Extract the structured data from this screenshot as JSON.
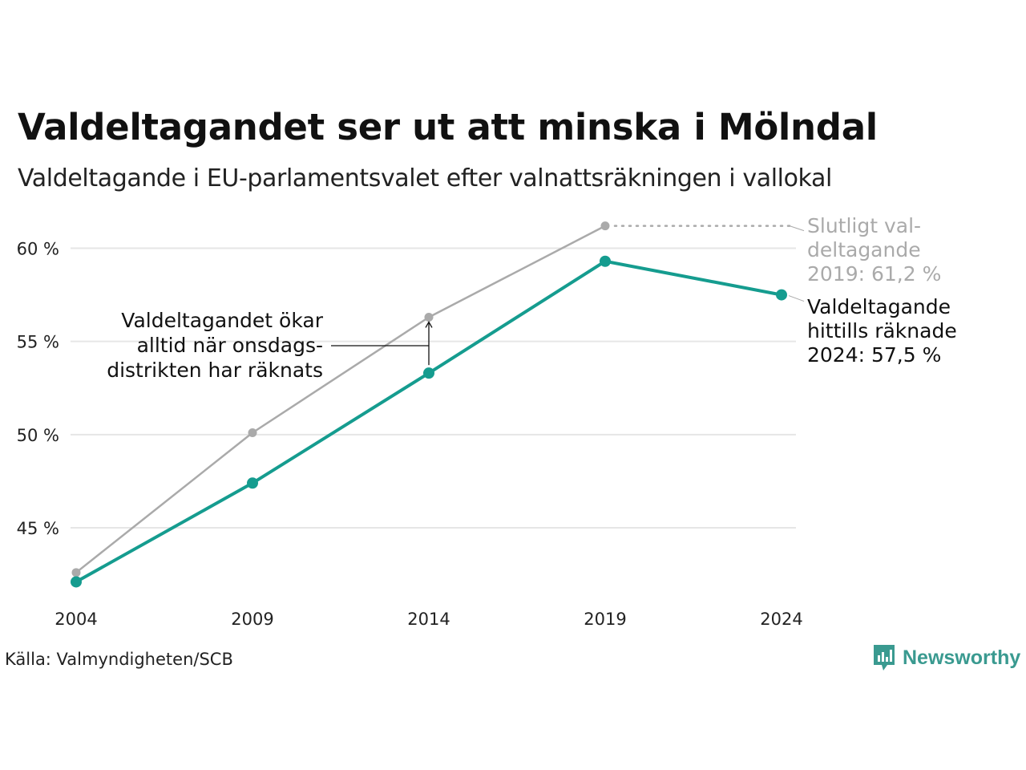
{
  "header": {
    "title": "Valdeltagandet ser ut att minska i Mölndal",
    "subtitle": "Valdeltagande i EU-parlamentsvalet efter valnattsräkningen i vallokal"
  },
  "chart_data": {
    "type": "line",
    "x": [
      2004,
      2009,
      2014,
      2019,
      2024
    ],
    "xtick_labels": [
      "2004",
      "2009",
      "2014",
      "2019",
      "2024"
    ],
    "ylim": [
      41,
      62
    ],
    "yticks": [
      45,
      50,
      55,
      60
    ],
    "ytick_labels": [
      "45 %",
      "50 %",
      "55 %",
      "60 %"
    ],
    "grid": true,
    "series": [
      {
        "key": "final",
        "color": "#aaaaaa",
        "x": [
          2004,
          2009,
          2014,
          2019
        ],
        "values": [
          42.6,
          50.1,
          56.3,
          61.2
        ]
      },
      {
        "key": "election_night",
        "color": "#159c8f",
        "x": [
          2004,
          2009,
          2014,
          2019,
          2024
        ],
        "values": [
          42.1,
          47.4,
          53.3,
          59.3,
          57.5
        ]
      }
    ],
    "annotations": {
      "final_label": [
        "Slutligt val-",
        "deltagande",
        "2019: 61,2 %"
      ],
      "current_label": [
        "Valdeltagande",
        "hittills räknade",
        "2024: 57,5 %"
      ],
      "increase_note": [
        "Valdeltagandet ökar",
        "alltid när onsdags-",
        "distrikten har räknats"
      ]
    }
  },
  "footer": {
    "source": "Källa: Valmyndigheten/SCB",
    "brand": "Newsworthy",
    "brand_icon": "bar-chart-speech-bubble-icon",
    "brand_color": "#3a9a90"
  }
}
